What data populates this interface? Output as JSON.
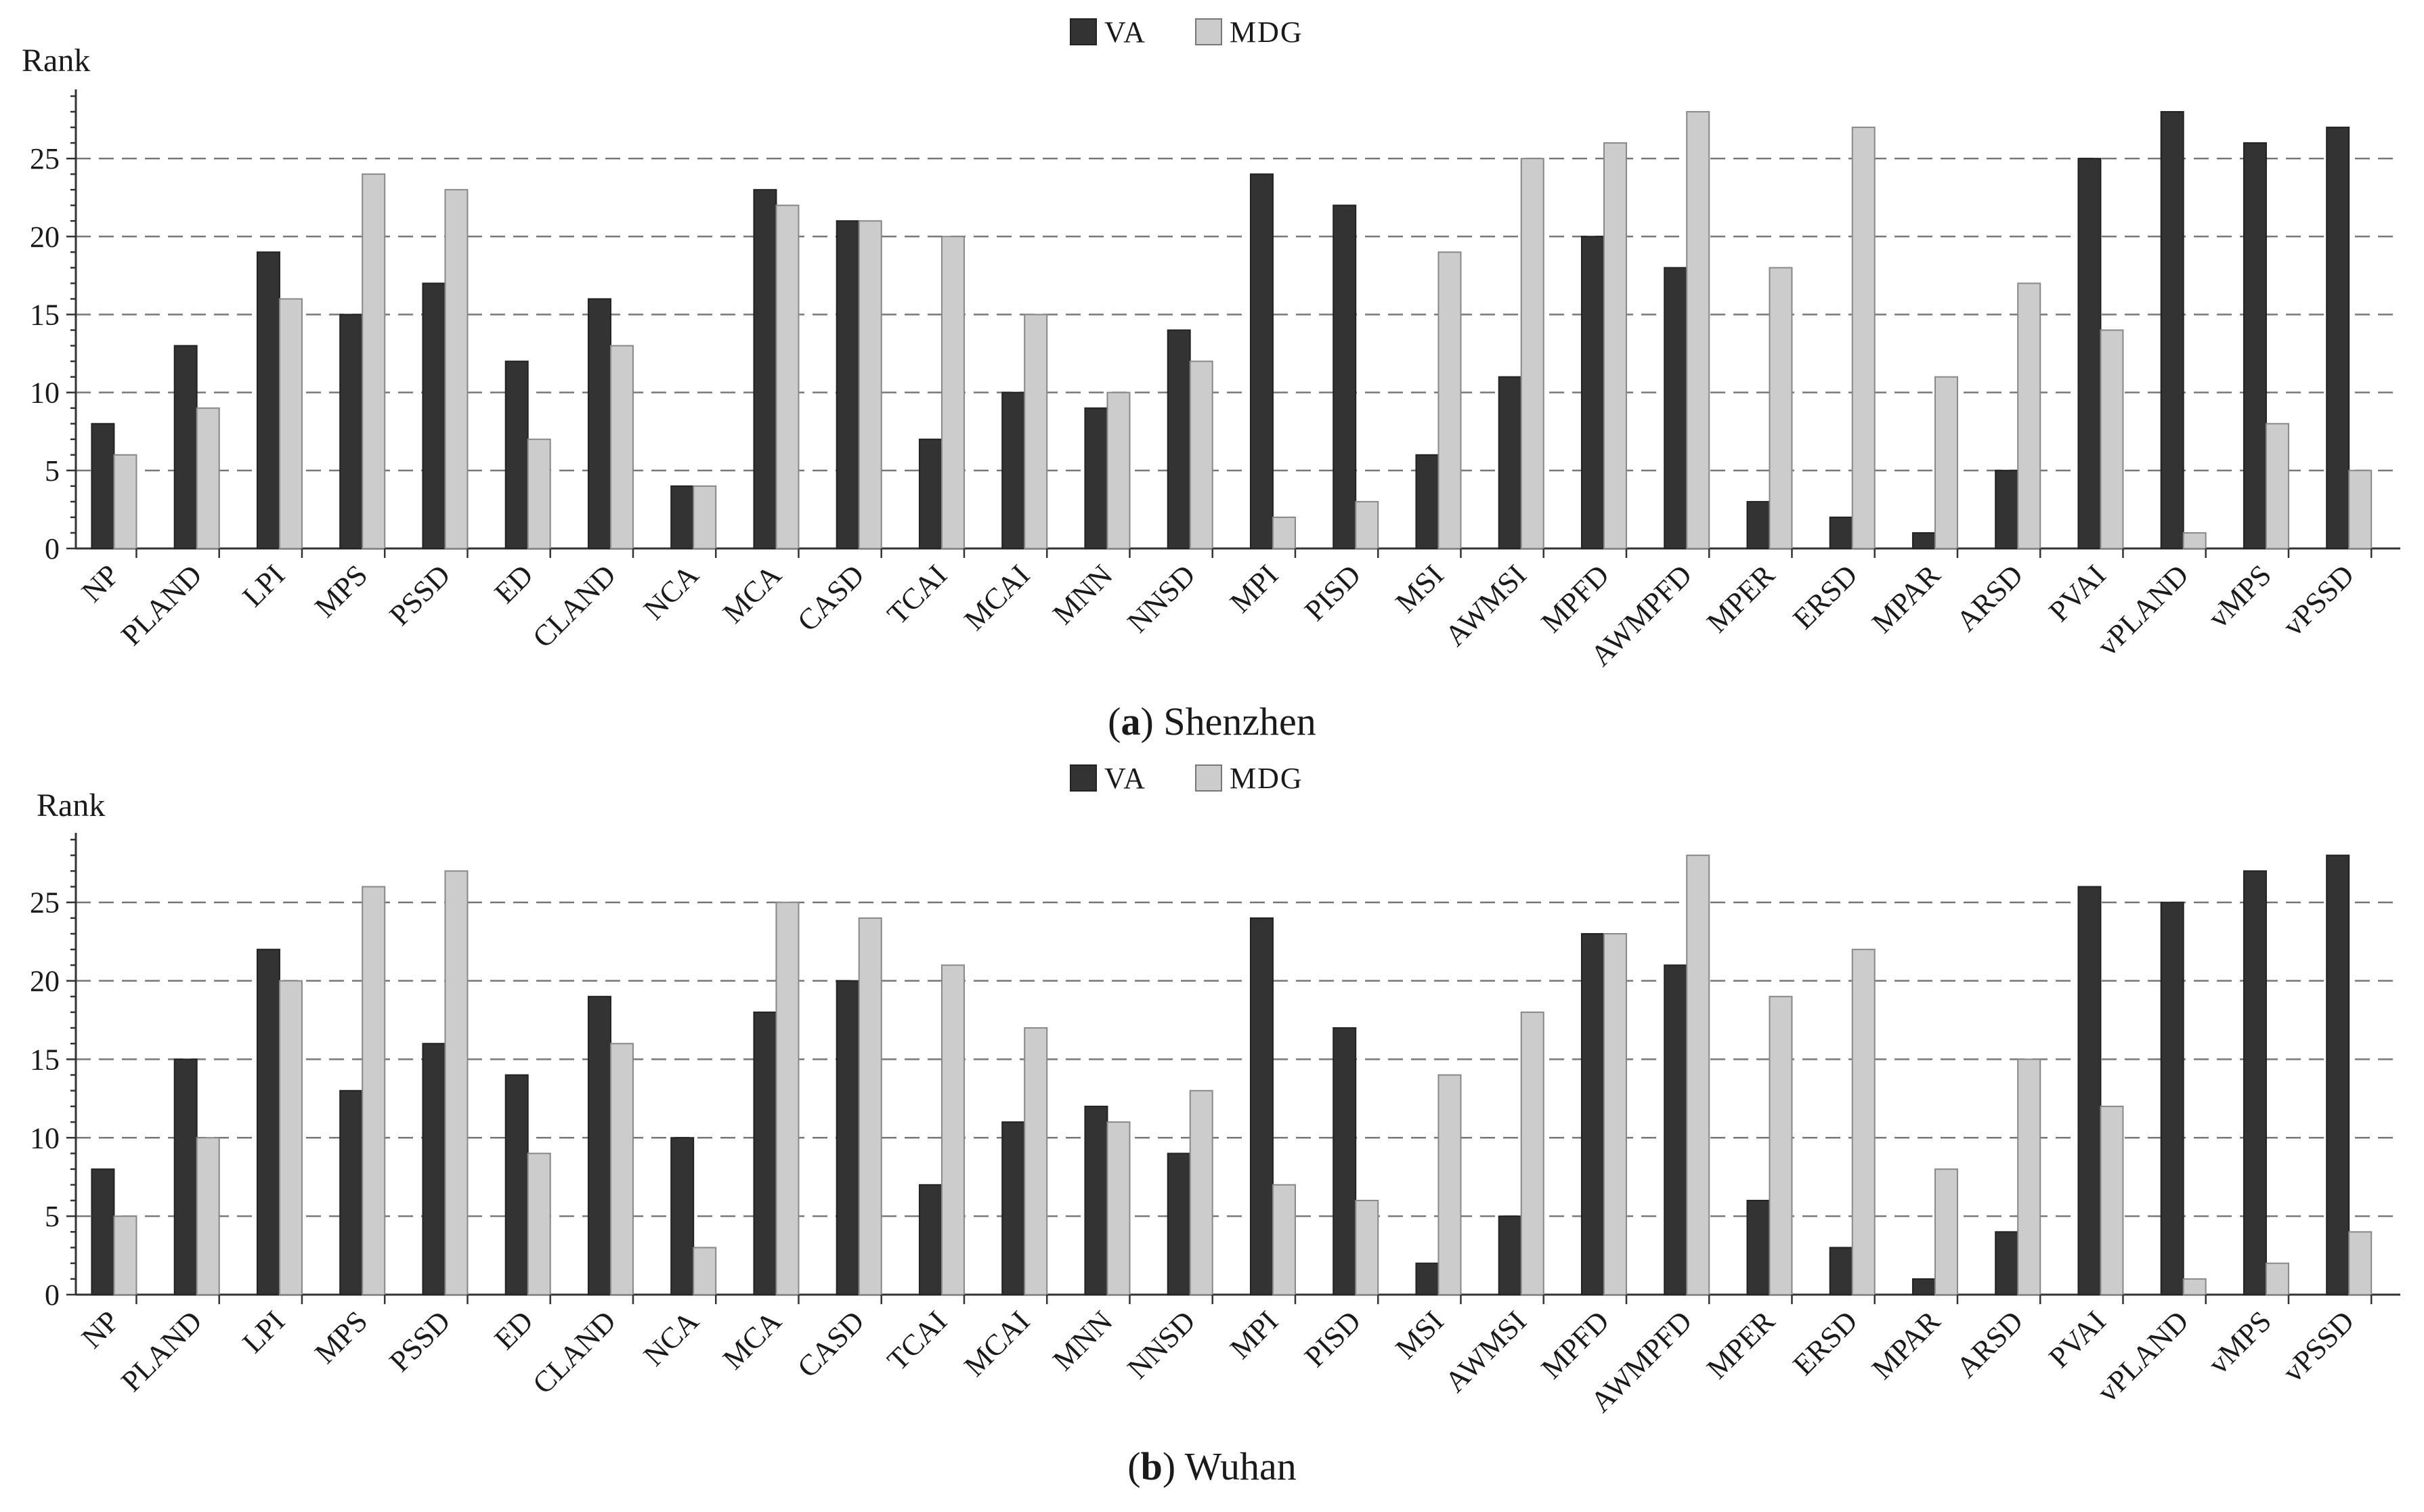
{
  "series_colors": {
    "VA": "#333333",
    "MDG": "#cccccc"
  },
  "legend": {
    "va": "VA",
    "mdg": "MDG"
  },
  "chart_data": [
    {
      "type": "bar",
      "caption_letter": "a",
      "caption_text": " Shenzhen",
      "ylabel": "Rank",
      "ylim": [
        0,
        29
      ],
      "yticks": [
        0,
        5,
        10,
        15,
        20,
        25
      ],
      "grid": true,
      "legend_position": "top-center",
      "categories": [
        "NP",
        "PLAND",
        "LPI",
        "MPS",
        "PSSD",
        "ED",
        "CLAND",
        "NCA",
        "MCA",
        "CASD",
        "TCAI",
        "MCAI",
        "MNN",
        "NNSD",
        "MPI",
        "PISD",
        "MSI",
        "AWMSI",
        "MPFD",
        "AWMPFD",
        "MPER",
        "ERSD",
        "MPAR",
        "ARSD",
        "PVAI",
        "vPLAND",
        "vMPS",
        "vPSSD"
      ],
      "series": [
        {
          "name": "VA",
          "values": [
            8,
            13,
            19,
            15,
            17,
            12,
            16,
            4,
            23,
            21,
            7,
            10,
            9,
            14,
            24,
            22,
            6,
            11,
            20,
            18,
            3,
            2,
            1,
            5,
            25,
            28,
            26,
            27
          ]
        },
        {
          "name": "MDG",
          "values": [
            6,
            9,
            16,
            24,
            23,
            7,
            13,
            4,
            22,
            21,
            20,
            15,
            10,
            12,
            2,
            3,
            19,
            25,
            26,
            28,
            18,
            27,
            11,
            17,
            14,
            1,
            8,
            5
          ]
        }
      ]
    },
    {
      "type": "bar",
      "caption_letter": "b",
      "caption_text": " Wuhan",
      "ylabel": "Rank",
      "ylim": [
        0,
        29
      ],
      "yticks": [
        0,
        5,
        10,
        15,
        20,
        25
      ],
      "grid": true,
      "legend_position": "top-center",
      "categories": [
        "NP",
        "PLAND",
        "LPI",
        "MPS",
        "PSSD",
        "ED",
        "CLAND",
        "NCA",
        "MCA",
        "CASD",
        "TCAI",
        "MCAI",
        "MNN",
        "NNSD",
        "MPI",
        "PISD",
        "MSI",
        "AWMSI",
        "MPFD",
        "AWMPFD",
        "MPER",
        "ERSD",
        "MPAR",
        "ARSD",
        "PVAI",
        "vPLAND",
        "vMPS",
        "vPSSD"
      ],
      "series": [
        {
          "name": "VA",
          "values": [
            8,
            15,
            22,
            13,
            16,
            14,
            19,
            10,
            18,
            20,
            7,
            11,
            12,
            9,
            24,
            17,
            2,
            5,
            23,
            21,
            6,
            3,
            1,
            4,
            26,
            25,
            27,
            28
          ]
        },
        {
          "name": "MDG",
          "values": [
            5,
            10,
            20,
            26,
            27,
            9,
            16,
            3,
            25,
            24,
            21,
            17,
            11,
            13,
            7,
            6,
            14,
            18,
            23,
            28,
            19,
            22,
            8,
            15,
            12,
            1,
            2,
            4
          ]
        }
      ]
    }
  ]
}
